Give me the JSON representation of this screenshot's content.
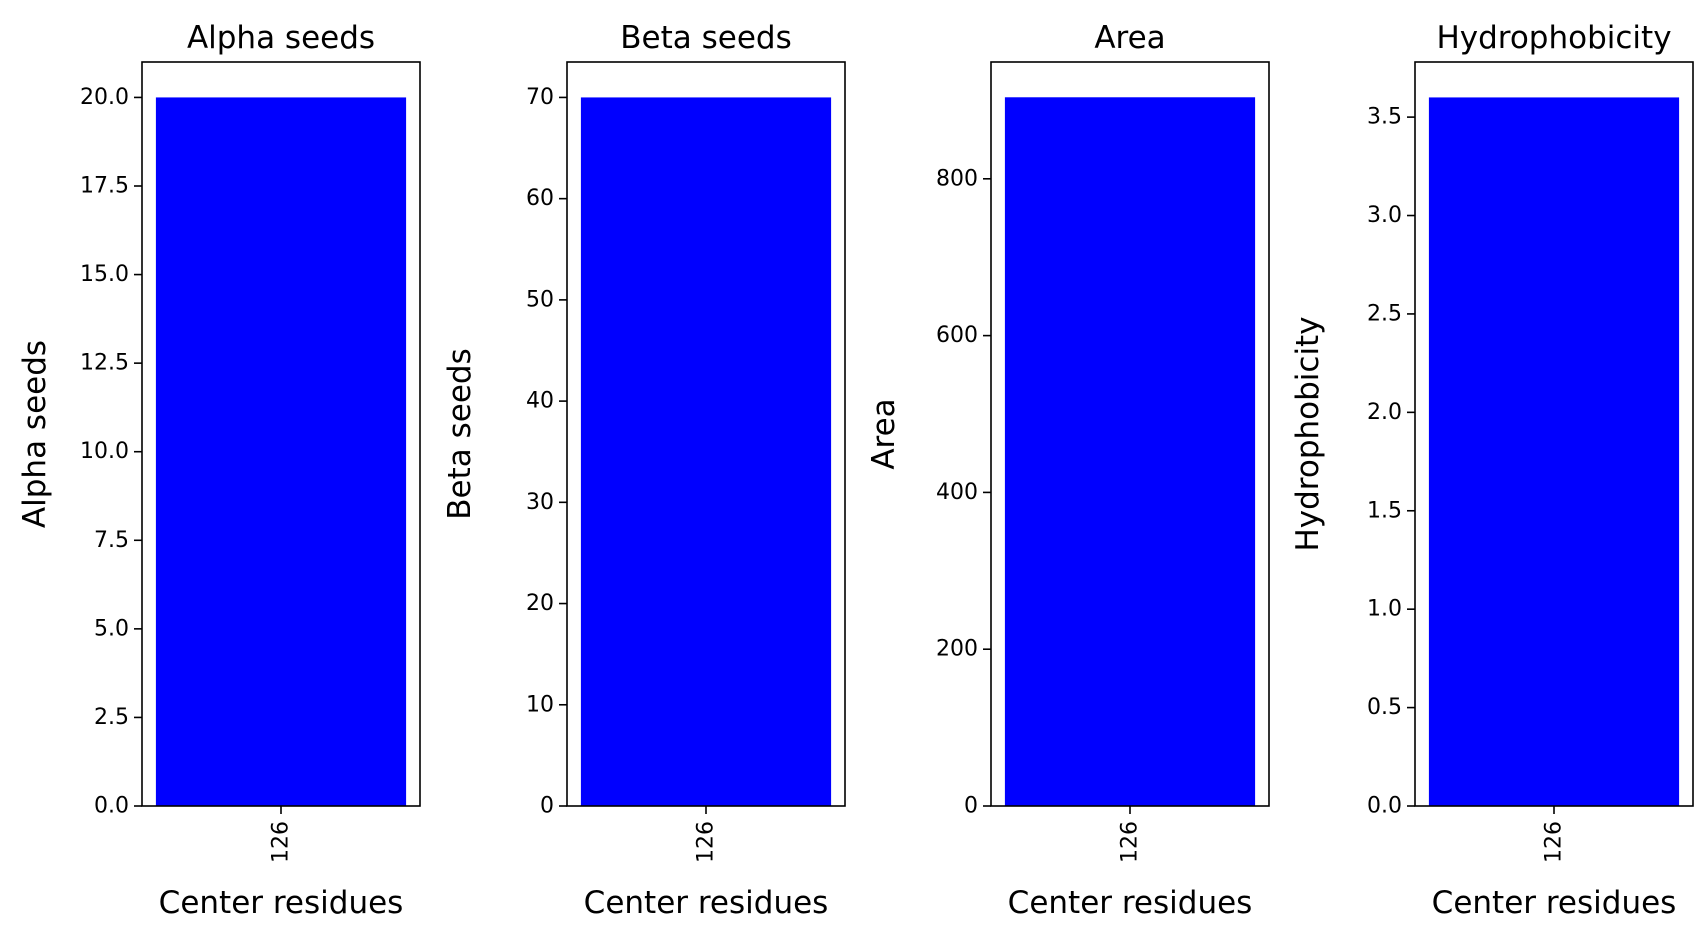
{
  "chart_data": [
    {
      "type": "bar",
      "title": "Alpha seeds",
      "xlabel": "Center residues",
      "ylabel": "Alpha seeds",
      "categories": [
        "126"
      ],
      "values": [
        20.0
      ],
      "ylim": [
        0,
        21.0
      ],
      "yticks": [
        0,
        2.5,
        5,
        7.5,
        10,
        12.5,
        15,
        17.5,
        20
      ],
      "ytick_labels": [
        "0.0",
        "2.5",
        "5.0",
        "7.5",
        "10.0",
        "12.5",
        "15.0",
        "17.5",
        "20.0"
      ],
      "bar_color": "#0000ff",
      "grid": false
    },
    {
      "type": "bar",
      "title": "Beta seeds",
      "xlabel": "Center residues",
      "ylabel": "Beta seeds",
      "categories": [
        "126"
      ],
      "values": [
        70
      ],
      "ylim": [
        0,
        73.5
      ],
      "yticks": [
        0,
        10,
        20,
        30,
        40,
        50,
        60,
        70
      ],
      "ytick_labels": [
        "0",
        "10",
        "20",
        "30",
        "40",
        "50",
        "60",
        "70"
      ],
      "bar_color": "#0000ff",
      "grid": false
    },
    {
      "type": "bar",
      "title": "Area",
      "xlabel": "Center residues",
      "ylabel": "Area",
      "categories": [
        "126"
      ],
      "values": [
        904
      ],
      "ylim": [
        0,
        949
      ],
      "yticks": [
        0,
        200,
        400,
        600,
        800
      ],
      "ytick_labels": [
        "0",
        "200",
        "400",
        "600",
        "800"
      ],
      "bar_color": "#0000ff",
      "grid": false
    },
    {
      "type": "bar",
      "title": "Hydrophobicity",
      "xlabel": "Center residues",
      "ylabel": "Hydrophobicity",
      "categories": [
        "126"
      ],
      "values": [
        3.6
      ],
      "ylim": [
        0,
        3.78
      ],
      "yticks": [
        0,
        0.5,
        1.0,
        1.5,
        2.0,
        2.5,
        3.0,
        3.5
      ],
      "ytick_labels": [
        "0.0",
        "0.5",
        "1.0",
        "1.5",
        "2.0",
        "2.5",
        "3.0",
        "3.5"
      ],
      "bar_color": "#0000ff",
      "grid": false
    }
  ]
}
